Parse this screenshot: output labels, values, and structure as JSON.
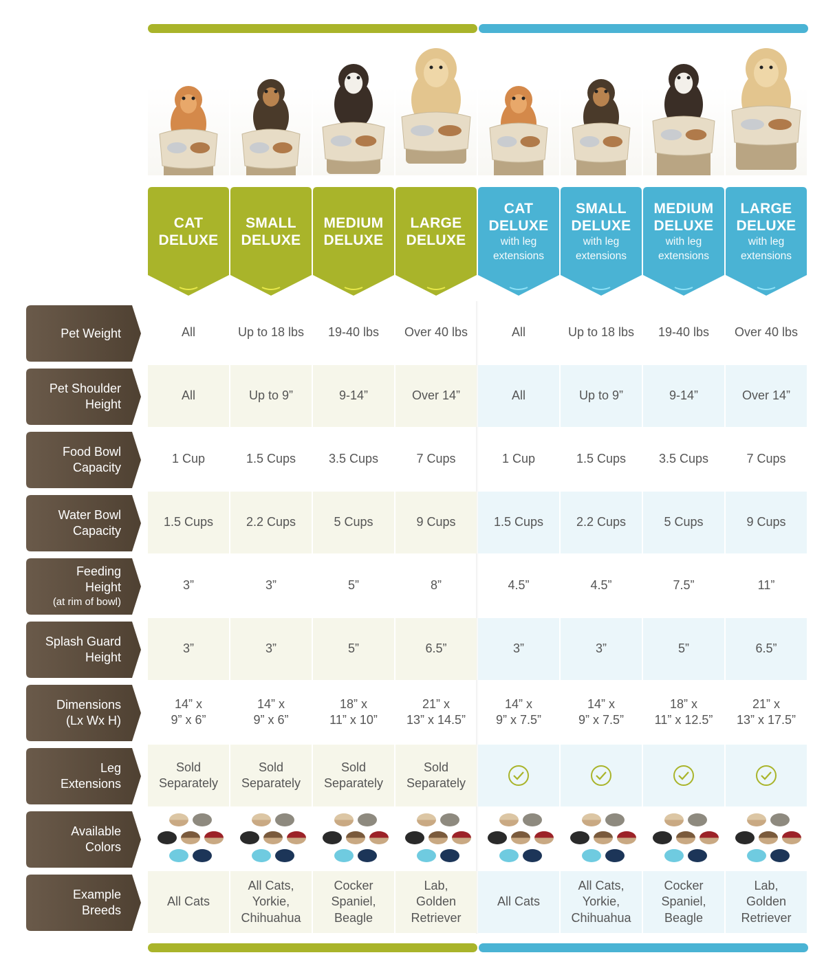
{
  "colors": {
    "green": "#a9b42a",
    "green_dark": "#98a31f",
    "blue": "#4ab3d4",
    "blue_dark": "#3ea5c6",
    "label_bg": "#5b4b3c",
    "text": "#555555",
    "shade_green": "#f6f6ea",
    "shade_blue": "#ebf6fa",
    "bowl": "#e7dcc6"
  },
  "products": [
    {
      "name": "CAT\nDELUXE",
      "sub": "",
      "group": "green",
      "pet": "cat-icon"
    },
    {
      "name": "SMALL\nDELUXE",
      "sub": "",
      "group": "green",
      "pet": "small-dog-icon"
    },
    {
      "name": "MEDIUM\nDELUXE",
      "sub": "",
      "group": "green",
      "pet": "medium-dog-icon"
    },
    {
      "name": "LARGE\nDELUXE",
      "sub": "",
      "group": "green",
      "pet": "large-dog-icon"
    },
    {
      "name": "CAT\nDELUXE",
      "sub": "with leg\nextensions",
      "group": "blue",
      "pet": "cat-icon"
    },
    {
      "name": "SMALL\nDELUXE",
      "sub": "with leg\nextensions",
      "group": "blue",
      "pet": "small-dog-icon"
    },
    {
      "name": "MEDIUM\nDELUXE",
      "sub": "with leg\nextensions",
      "group": "blue",
      "pet": "medium-dog-icon"
    },
    {
      "name": "LARGE\nDELUXE",
      "sub": "with leg\nextensions",
      "group": "blue",
      "pet": "large-dog-icon"
    }
  ],
  "rows": [
    {
      "label": "Pet Weight",
      "sub": "",
      "values": [
        "All",
        "Up to 18 lbs",
        "19-40 lbs",
        "Over 40 lbs",
        "All",
        "Up to 18 lbs",
        "19-40 lbs",
        "Over 40 lbs"
      ]
    },
    {
      "label": "Pet Shoulder\nHeight",
      "sub": "",
      "values": [
        "All",
        "Up to 9”",
        "9-14”",
        "Over 14”",
        "All",
        "Up to 9”",
        "9-14”",
        "Over 14”"
      ]
    },
    {
      "label": "Food Bowl\nCapacity",
      "sub": "",
      "values": [
        "1 Cup",
        "1.5 Cups",
        "3.5 Cups",
        "7 Cups",
        "1 Cup",
        "1.5 Cups",
        "3.5 Cups",
        "7 Cups"
      ]
    },
    {
      "label": "Water Bowl\nCapacity",
      "sub": "",
      "values": [
        "1.5 Cups",
        "2.2 Cups",
        "5 Cups",
        "9 Cups",
        "1.5 Cups",
        "2.2 Cups",
        "5 Cups",
        "9 Cups"
      ]
    },
    {
      "label": "Feeding\nHeight",
      "sub": "(at rim of bowl)",
      "values": [
        "3”",
        "3”",
        "5”",
        "8”",
        "4.5”",
        "4.5”",
        "7.5”",
        "11”"
      ]
    },
    {
      "label": "Splash Guard\nHeight",
      "sub": "",
      "values": [
        "3”",
        "3”",
        "5”",
        "6.5”",
        "3”",
        "3”",
        "5”",
        "6.5”"
      ]
    },
    {
      "label": "Dimensions\n(Lx Wx H)",
      "sub": "",
      "values": [
        "14” x\n9” x 6”",
        "14” x\n9” x 6”",
        "18” x\n11” x 10”",
        "21” x\n13” x 14.5”",
        "14” x\n9” x 7.5”",
        "14” x\n9” x 7.5”",
        "18” x\n11” x 12.5”",
        "21” x\n13” x 17.5”"
      ]
    },
    {
      "label": "Leg\nExtensions",
      "sub": "",
      "values": [
        "Sold\nSeparately",
        "Sold\nSeparately",
        "Sold\nSeparately",
        "Sold\nSeparately",
        "check-icon",
        "check-icon",
        "check-icon",
        "check-icon"
      ]
    },
    {
      "label": "Available\nColors",
      "sub": "",
      "values": [
        "swatches",
        "swatches",
        "swatches",
        "swatches",
        "swatches",
        "swatches",
        "swatches",
        "swatches"
      ]
    },
    {
      "label": "Example\nBreeds",
      "sub": "",
      "values": [
        "All Cats",
        "All Cats,\nYorkie,\nChihuahua",
        "Cocker\nSpaniel,\nBeagle",
        "Lab,\nGolden\nRetriever",
        "All Cats",
        "All Cats,\nYorkie,\nChihuahua",
        "Cocker\nSpaniel,\nBeagle",
        "Lab,\nGolden\nRetriever"
      ]
    }
  ],
  "swatches": [
    {
      "name": "almond",
      "top": "#dcc6a4",
      "bottom": "#c9a983"
    },
    {
      "name": "grey",
      "top": "#8e8a7f",
      "bottom": "#8e8a7f"
    },
    {
      "name": "black",
      "top": "#2a2a2a",
      "bottom": "#2a2a2a"
    },
    {
      "name": "cappuccino",
      "top": "#7a5a3c",
      "bottom": "#c9a983"
    },
    {
      "name": "red",
      "top": "#9c2228",
      "bottom": "#c9a983"
    },
    {
      "name": "light-blue",
      "top": "#6fcbe0",
      "bottom": "#6fcbe0"
    },
    {
      "name": "navy",
      "top": "#1c3558",
      "bottom": "#1c3558"
    }
  ]
}
